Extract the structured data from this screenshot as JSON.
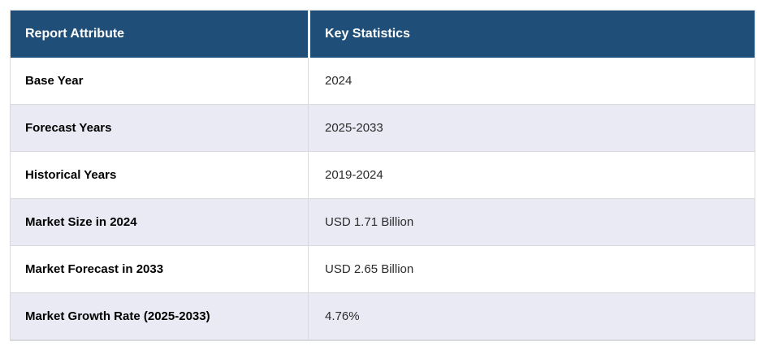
{
  "table": {
    "columns": [
      {
        "label": "Report Attribute"
      },
      {
        "label": "Key Statistics"
      }
    ],
    "rows": [
      {
        "attribute": "Base Year",
        "value": "2024"
      },
      {
        "attribute": "Forecast Years",
        "value": "2025-2033"
      },
      {
        "attribute": "Historical Years",
        "value": "2019-2024"
      },
      {
        "attribute": "Market Size in 2024",
        "value": "USD 1.71 Billion"
      },
      {
        "attribute": "Market Forecast in 2033",
        "value": "USD 2.65 Billion"
      },
      {
        "attribute": "Market Growth Rate (2025-2033)",
        "value": "4.76%"
      }
    ],
    "colors": {
      "header_bg": "#1F4E78",
      "header_text": "#FFFFFF",
      "stripe_bg": "#E9EAF4",
      "row_bg": "#FFFFFF",
      "border": "#D9DADE",
      "attribute_text": "#000000",
      "value_text": "#2B2B2B"
    }
  }
}
